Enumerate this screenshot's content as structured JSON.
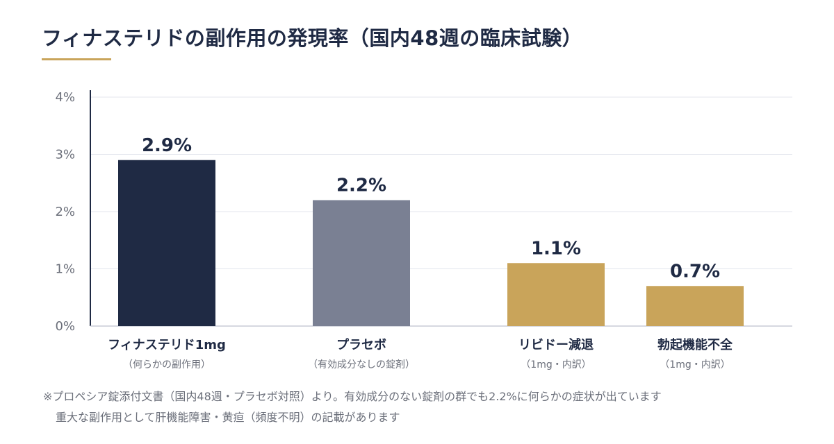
{
  "title": "フィナステリドの副作用の発現率（国内48週の臨床試験）",
  "colors": {
    "accent": "#c9a45a",
    "navy": "#1f2a44",
    "gray": "#7a8093",
    "gold": "#c9a45a",
    "grid": "#e3e6ee",
    "text": "#1f2a44",
    "muted": "#6b6f7a"
  },
  "chart_data": {
    "type": "bar",
    "title": "",
    "xlabel": "",
    "ylabel": "",
    "ylim": [
      0,
      4
    ],
    "yticks": [
      {
        "value": 0,
        "label": "0%"
      },
      {
        "value": 1,
        "label": "1%"
      },
      {
        "value": 2,
        "label": "2%"
      },
      {
        "value": 3,
        "label": "3%"
      },
      {
        "value": 4,
        "label": "4%"
      }
    ],
    "grid": true,
    "categories": [
      {
        "label": "フィナステリド1mg",
        "sublabel": "（何らかの副作用）",
        "value": 2.9,
        "value_label": "2.9%",
        "color": "#1f2a44"
      },
      {
        "label": "プラセボ",
        "sublabel": "（有効成分なしの錠剤）",
        "value": 2.2,
        "value_label": "2.2%",
        "color": "#7a8093"
      },
      {
        "label": "リビドー減退",
        "sublabel": "（1mg・内訳）",
        "value": 1.1,
        "value_label": "1.1%",
        "color": "#c9a45a"
      },
      {
        "label": "勃起機能不全",
        "sublabel": "（1mg・内訳）",
        "value": 0.7,
        "value_label": "0.7%",
        "color": "#c9a45a"
      }
    ]
  },
  "notes": [
    "※プロペシア錠添付文書（国内48週・プラセボ対照）より。有効成分のない錠剤の群でも2.2%に何らかの症状が出ています",
    "重大な副作用として肝機能障害・黄疸（頻度不明）の記載があります"
  ]
}
